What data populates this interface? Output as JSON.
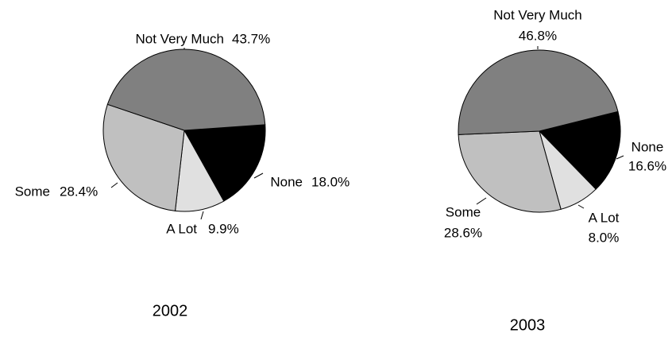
{
  "chart_data": [
    {
      "type": "pie",
      "title": "2002",
      "categories": [
        "None",
        "A Lot",
        "Some",
        "Not Very Much"
      ],
      "values": [
        18.0,
        9.9,
        28.4,
        43.7
      ],
      "value_labels": [
        "18.0%",
        "9.9%",
        "28.4%",
        "43.7%"
      ],
      "colors": [
        "#000000",
        "#e0e0e0",
        "#c0c0c0",
        "#808080"
      ]
    },
    {
      "type": "pie",
      "title": "2003",
      "categories": [
        "None",
        "A Lot",
        "Some",
        "Not Very Much"
      ],
      "values": [
        16.6,
        8.0,
        28.6,
        46.8
      ],
      "value_labels": [
        "16.6%",
        "8.0%",
        "28.6%",
        "46.8%"
      ],
      "colors": [
        "#000000",
        "#e0e0e0",
        "#c0c0c0",
        "#808080"
      ]
    }
  ]
}
